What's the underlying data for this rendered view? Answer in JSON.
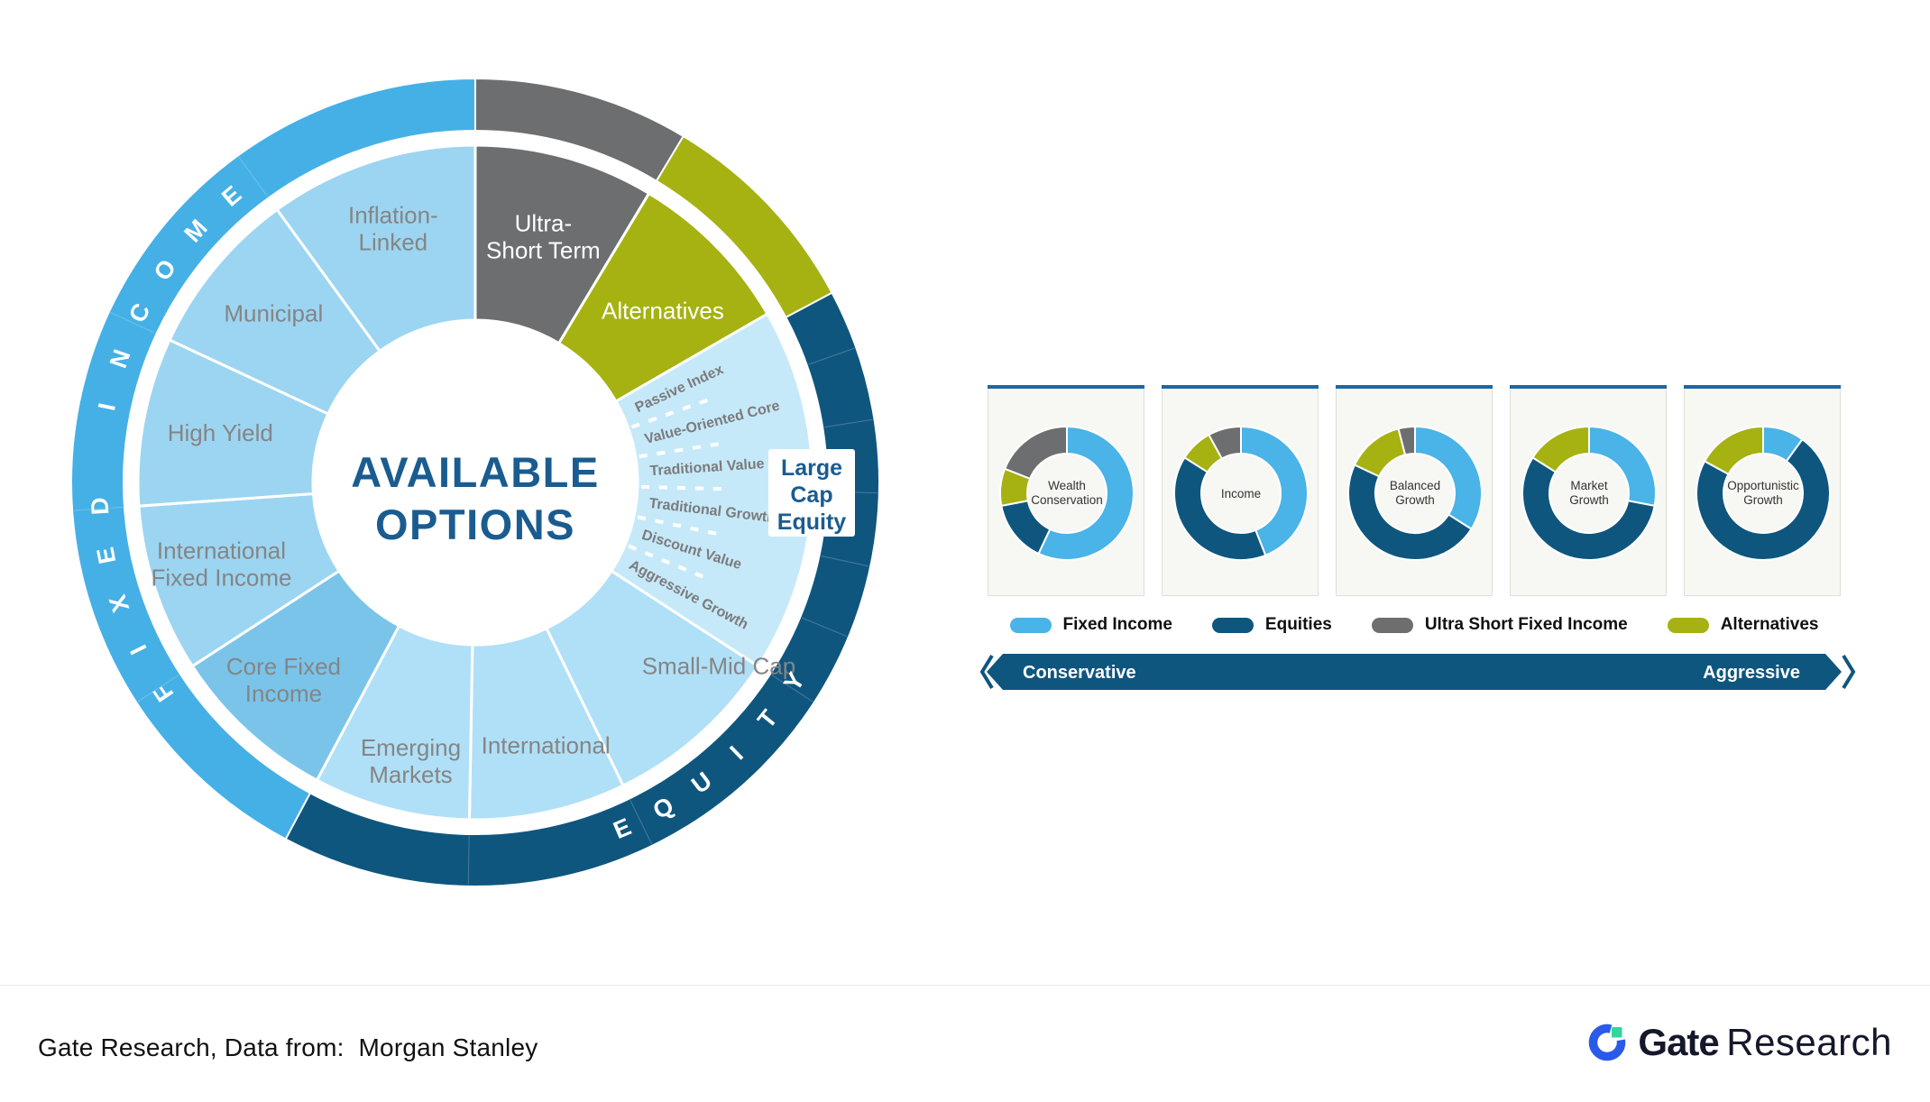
{
  "palette": {
    "fixed_income": "#4AB3E7",
    "equities": "#0F567F",
    "ultra_short": "#6D6E70",
    "alternatives": "#A5B211",
    "fi_ring": "#45B0E6",
    "equities_ring": "#0F567F",
    "fi_light": "#9CD5F1",
    "core_blue": "#7AC4EA",
    "equity_light": "#B0E0F7",
    "thin_slice": "#C6E9FA",
    "title_blue": "#1A5C90",
    "label_gray": "#858585",
    "card_line": "#1C67A6",
    "bar_blue": "#0F567F",
    "brand_blue": "#2A5AE9",
    "brand_green": "#2FD79C"
  },
  "wheel": {
    "center_title_lines": [
      "AVAILABLE",
      "OPTIONS"
    ],
    "outer_ring": [
      {
        "name": "outer-ultra-short",
        "color_key": "ultra_short",
        "start": 0,
        "end": 31
      },
      {
        "name": "outer-alternatives",
        "color_key": "alternatives",
        "start": 31,
        "end": 62
      },
      {
        "name": "outer-equity",
        "color_key": "equities_ring",
        "start": 62,
        "end": 208
      },
      {
        "name": "outer-fixed-income",
        "color_key": "fi_ring",
        "start": 208,
        "end": 360
      }
    ],
    "ring_labels": [
      {
        "text": "FIXED INCOME",
        "radius": 417,
        "start_angle": 236,
        "step": 7.6,
        "direction": "cw",
        "color": "#FFFFFF",
        "size": 27
      },
      {
        "text": "EQUITY",
        "radius": 417,
        "start_angle": 157,
        "step": -7,
        "direction": "ccw",
        "color": "#FFFFFF",
        "size": 27
      }
    ],
    "segments": [
      {
        "name": "ultra-short-term",
        "color_key": "ultra_short",
        "start": 0,
        "end": 31,
        "label": {
          "lines": [
            "Ultra-",
            "Short Term"
          ],
          "angle": 15.5,
          "radius": 282,
          "color": "#FFFFFF",
          "size": 26
        }
      },
      {
        "name": "alternatives",
        "color_key": "alternatives",
        "start": 31,
        "end": 62,
        "label": {
          "lines": [
            "Alternatives"
          ],
          "angle": 47.5,
          "radius": 282,
          "color": "#FFFFFF",
          "size": 26
        }
      },
      {
        "name": "passive-index",
        "color_key": "thin_slice",
        "start": 60,
        "end": 70.5,
        "thin": true,
        "label": {
          "lines": [
            "Passive Index"
          ],
          "angle": 65.25,
          "radius": 196,
          "color": "#7B7B7B",
          "size": 16,
          "rotate": true
        }
      },
      {
        "name": "value-oriented-core",
        "color_key": "thin_slice",
        "start": 70.5,
        "end": 81,
        "thin": true,
        "label": {
          "lines": [
            "Value-Oriented Core"
          ],
          "angle": 75.75,
          "radius": 194,
          "color": "#7B7B7B",
          "size": 16,
          "rotate": true
        }
      },
      {
        "name": "traditional-value",
        "color_key": "thin_slice",
        "start": 81,
        "end": 91.5,
        "thin": true,
        "label": {
          "lines": [
            "Traditional Value"
          ],
          "angle": 86.25,
          "radius": 194,
          "color": "#7B7B7B",
          "size": 16,
          "rotate": true
        }
      },
      {
        "name": "traditional-growth",
        "color_key": "thin_slice",
        "start": 91.5,
        "end": 102,
        "thin": true,
        "label": {
          "lines": [
            "Traditional Growth"
          ],
          "angle": 96.75,
          "radius": 194,
          "color": "#7B7B7B",
          "size": 16,
          "rotate": true
        }
      },
      {
        "name": "discount-value",
        "color_key": "thin_slice",
        "start": 102,
        "end": 112.5,
        "thin": true,
        "label": {
          "lines": [
            "Discount Value"
          ],
          "angle": 107.25,
          "radius": 194,
          "color": "#7B7B7B",
          "size": 16,
          "rotate": true
        }
      },
      {
        "name": "aggressive-growth",
        "color_key": "thin_slice",
        "start": 112.5,
        "end": 123,
        "thin": true,
        "label": {
          "lines": [
            "Aggressive Growth"
          ],
          "angle": 117.75,
          "radius": 194,
          "color": "#7B7B7B",
          "size": 16,
          "rotate": true
        }
      },
      {
        "name": "small-mid-cap",
        "color_key": "equity_light",
        "start": 123,
        "end": 154,
        "label": {
          "lines": [
            "Small-Mid Cap"
          ],
          "angle": 127,
          "radius": 338,
          "color": "#858585",
          "size": 26
        }
      },
      {
        "name": "international-equity",
        "color_key": "equity_light",
        "start": 154,
        "end": 181,
        "label": {
          "lines": [
            "International"
          ],
          "angle": 165,
          "radius": 302,
          "color": "#858585",
          "size": 26
        }
      },
      {
        "name": "emerging-markets",
        "color_key": "equity_light",
        "start": 181,
        "end": 208,
        "label": {
          "lines": [
            "Emerging",
            "Markets"
          ],
          "angle": 193,
          "radius": 318,
          "color": "#858585",
          "size": 26
        }
      },
      {
        "name": "core-fixed-income",
        "color_key": "core_blue",
        "start": 208,
        "end": 237,
        "label": {
          "lines": [
            "Core Fixed",
            "Income"
          ],
          "angle": 224,
          "radius": 306,
          "color": "#858585",
          "size": 26
        }
      },
      {
        "name": "international-fixed-income",
        "color_key": "fi_light",
        "start": 237,
        "end": 266,
        "label": {
          "lines": [
            "International",
            "Fixed Income"
          ],
          "angle": 252,
          "radius": 296,
          "color": "#858585",
          "size": 26
        }
      },
      {
        "name": "high-yield",
        "color_key": "fi_light",
        "start": 266,
        "end": 295,
        "label": {
          "lines": [
            "High Yield"
          ],
          "angle": 281,
          "radius": 288,
          "color": "#858585",
          "size": 26
        }
      },
      {
        "name": "municipal",
        "color_key": "fi_light",
        "start": 295,
        "end": 324,
        "label": {
          "lines": [
            "Municipal"
          ],
          "angle": 310,
          "radius": 292,
          "color": "#858585",
          "size": 26
        }
      },
      {
        "name": "inflation-linked",
        "color_key": "fi_light",
        "start": 324,
        "end": 360,
        "label": {
          "lines": [
            "Inflation-",
            "Linked"
          ],
          "angle": 342,
          "radius": 295,
          "color": "#858585",
          "size": 26
        }
      }
    ],
    "callout": {
      "lines": [
        "Large",
        "Cap",
        "Equity"
      ]
    }
  },
  "chart_data": {
    "type": "pie",
    "subtype": "donut-multiples",
    "legend_position": "bottom",
    "categories": [
      "Fixed Income",
      "Equities",
      "Alternatives",
      "Ultra Short Fixed Income"
    ],
    "charts": [
      {
        "name": "wealth-conservation",
        "title_lines": [
          "Wealth",
          "Conservation"
        ],
        "values": {
          "fixed_income": 57,
          "equities": 15,
          "alternatives": 9,
          "ultra_short": 19
        }
      },
      {
        "name": "income",
        "title_lines": [
          "Income"
        ],
        "values": {
          "fixed_income": 44,
          "equities": 40,
          "alternatives": 8,
          "ultra_short": 8
        }
      },
      {
        "name": "balanced-growth",
        "title_lines": [
          "Balanced",
          "Growth"
        ],
        "values": {
          "fixed_income": 34,
          "equities": 48,
          "alternatives": 14,
          "ultra_short": 4
        }
      },
      {
        "name": "market-growth",
        "title_lines": [
          "Market",
          "Growth"
        ],
        "values": {
          "fixed_income": 28,
          "equities": 56,
          "alternatives": 16,
          "ultra_short": 0
        }
      },
      {
        "name": "opportunistic-growth",
        "title_lines": [
          "Opportunistic",
          "Growth"
        ],
        "values": {
          "fixed_income": 10,
          "equities": 73,
          "alternatives": 17,
          "ultra_short": 0
        }
      }
    ],
    "legend": [
      {
        "label": "Fixed Income",
        "color_key": "fixed_income"
      },
      {
        "label": "Equities",
        "color_key": "equities"
      },
      {
        "label": "Ultra Short Fixed Income",
        "color_key": "ultra_short"
      },
      {
        "label": "Alternatives",
        "color_key": "alternatives"
      }
    ],
    "risk_axis": {
      "left": "Conservative",
      "right": "Aggressive"
    }
  },
  "footer": {
    "source": "Gate Research, Data from:  Morgan Stanley"
  },
  "brand": {
    "name_bold": "Gate",
    "name_regular": "Research"
  }
}
